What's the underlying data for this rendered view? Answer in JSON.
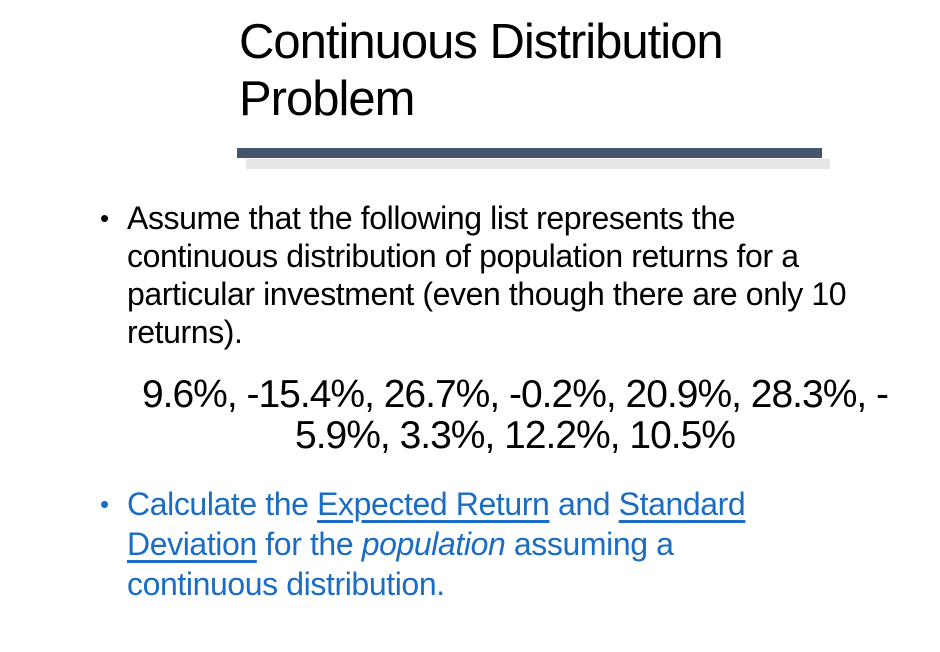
{
  "slide": {
    "background_color": "#FFFFFF",
    "title": {
      "lines": [
        "Continuous Distribution",
        "Problem"
      ],
      "color": "#000000"
    },
    "title_rule": {
      "color": "#45556B",
      "shadow_color": "#E5E5E5"
    },
    "bullet1": {
      "marker": "•",
      "color": "#000000",
      "lines": [
        "Assume that the following list represents the",
        "continuous distribution of population returns for a",
        "particular investment (even though there are only 10",
        "returns)."
      ]
    },
    "returns_list": {
      "color": "#000000",
      "lines": [
        "9.6%, -15.4%, 26.7%, -0.2%, 20.9%, 28.3%, -",
        "5.9%, 3.3%, 12.2%, 10.5%"
      ],
      "values": [
        "9.6%",
        "-15.4%",
        "26.7%",
        "-0.2%",
        "20.9%",
        "28.3%",
        "-5.9%",
        "3.3%",
        "12.2%",
        "10.5%"
      ]
    },
    "bullet2": {
      "marker": "•",
      "color": "#1B6CC4",
      "lines": [
        [
          {
            "t": "Calculate the "
          },
          {
            "t": "Expected Return",
            "u": true
          },
          {
            "t": " and "
          },
          {
            "t": "Standard",
            "u": true
          }
        ],
        [
          {
            "t": "Deviation",
            "u": true
          },
          {
            "t": " for the "
          },
          {
            "t": "population",
            "i": true
          },
          {
            "t": " assuming a"
          }
        ],
        [
          {
            "t": "continuous distribution."
          }
        ]
      ]
    }
  }
}
